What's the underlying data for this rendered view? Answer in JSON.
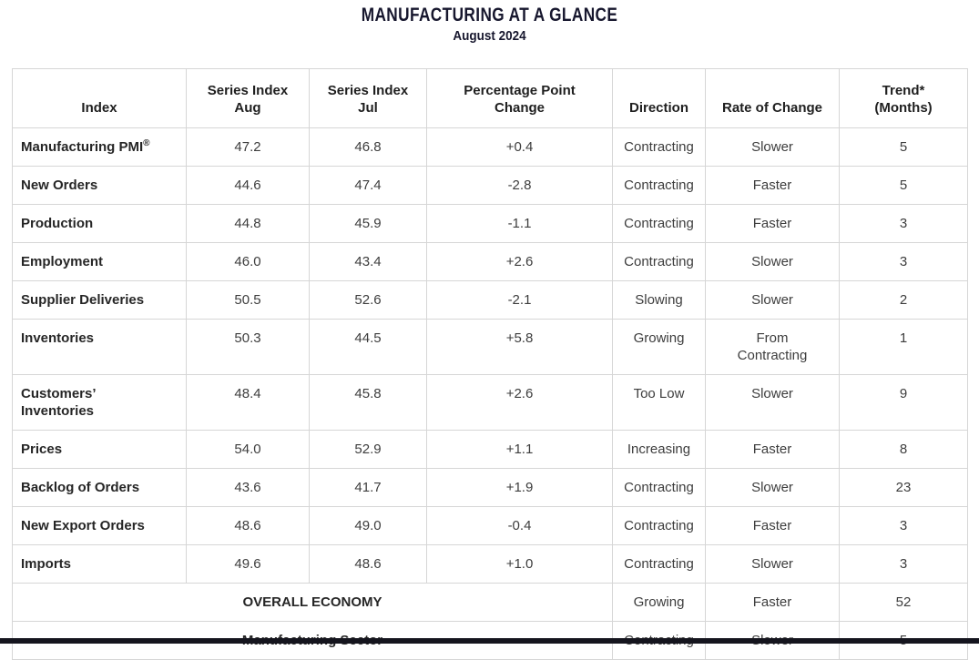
{
  "title": "MANUFACTURING AT A GLANCE",
  "subtitle": "August 2024",
  "colors": {
    "title_text": "#17172e",
    "label_text": "#262626",
    "body_text": "#3d3d3d",
    "border": "#d6d6d6",
    "bottom_bar": "#15151e",
    "background": "#ffffff"
  },
  "table": {
    "headers": [
      {
        "lines": [
          "Index"
        ]
      },
      {
        "lines": [
          "Series Index",
          "Aug"
        ]
      },
      {
        "lines": [
          "Series Index",
          "Jul"
        ]
      },
      {
        "lines": [
          "Percentage Point",
          "Change"
        ]
      },
      {
        "lines": [
          "Direction"
        ]
      },
      {
        "lines": [
          "Rate of Change"
        ]
      },
      {
        "lines": [
          "Trend*",
          "(Months)"
        ]
      }
    ],
    "rows": [
      {
        "label": "Manufacturing PMI",
        "label_sup": "®",
        "aug": "47.2",
        "jul": "46.8",
        "change": "+0.4",
        "direction": "Contracting",
        "rate": "Slower",
        "trend": "5"
      },
      {
        "label": "New Orders",
        "aug": "44.6",
        "jul": "47.4",
        "change": "-2.8",
        "direction": "Contracting",
        "rate": "Faster",
        "trend": "5"
      },
      {
        "label": "Production",
        "aug": "44.8",
        "jul": "45.9",
        "change": "-1.1",
        "direction": "Contracting",
        "rate": "Faster",
        "trend": "3"
      },
      {
        "label": "Employment",
        "aug": "46.0",
        "jul": "43.4",
        "change": "+2.6",
        "direction": "Contracting",
        "rate": "Slower",
        "trend": "3"
      },
      {
        "label": "Supplier Deliveries",
        "aug": "50.5",
        "jul": "52.6",
        "change": "-2.1",
        "direction": "Slowing",
        "rate": "Slower",
        "trend": "2"
      },
      {
        "label": "Inventories",
        "aug": "50.3",
        "jul": "44.5",
        "change": "+5.8",
        "direction": "Growing",
        "rate": [
          "From",
          "Contracting"
        ],
        "trend": "1"
      },
      {
        "label": [
          "Customers’",
          "Inventories"
        ],
        "aug": "48.4",
        "jul": "45.8",
        "change": "+2.6",
        "direction": "Too Low",
        "rate": "Slower",
        "trend": "9"
      },
      {
        "label": "Prices",
        "aug": "54.0",
        "jul": "52.9",
        "change": "+1.1",
        "direction": "Increasing",
        "rate": "Faster",
        "trend": "8"
      },
      {
        "label": "Backlog of Orders",
        "aug": "43.6",
        "jul": "41.7",
        "change": "+1.9",
        "direction": "Contracting",
        "rate": "Slower",
        "trend": "23"
      },
      {
        "label": "New Export Orders",
        "aug": "48.6",
        "jul": "49.0",
        "change": "-0.4",
        "direction": "Contracting",
        "rate": "Faster",
        "trend": "3"
      },
      {
        "label": "Imports",
        "aug": "49.6",
        "jul": "48.6",
        "change": "+1.0",
        "direction": "Contracting",
        "rate": "Slower",
        "trend": "3"
      }
    ],
    "summary_rows": [
      {
        "label": "OVERALL ECONOMY",
        "direction": "Growing",
        "rate": "Faster",
        "trend": "52"
      },
      {
        "label": "Manufacturing Sector",
        "direction": "Contracting",
        "rate": "Slower",
        "trend": "5"
      }
    ]
  }
}
